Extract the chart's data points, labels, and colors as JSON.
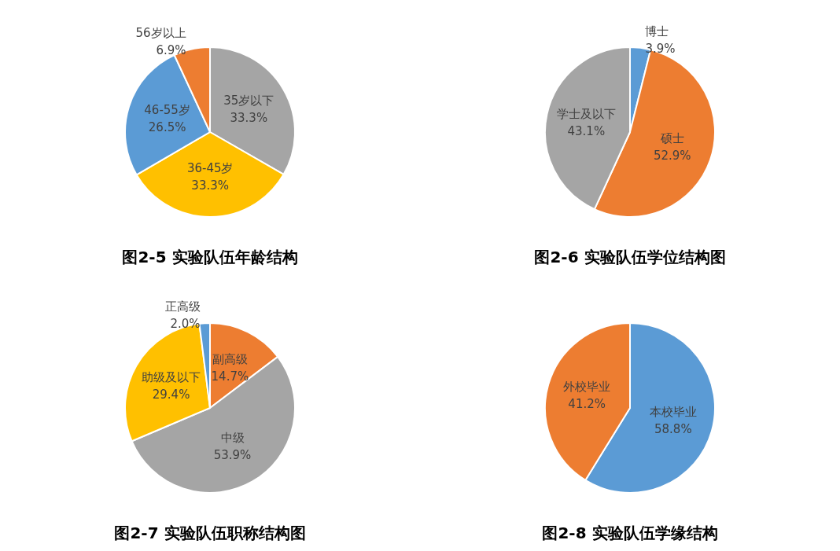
{
  "chart_data": [
    {
      "type": "pie",
      "title": "图2-5 实验队伍年龄结构",
      "categories": [
        "35岁以下",
        "36-45岁",
        "46-55岁",
        "56岁以上"
      ],
      "values": [
        33.3,
        33.3,
        26.5,
        6.9
      ],
      "value_labels": [
        "33.3%",
        "33.3%",
        "26.5%",
        "6.9%"
      ],
      "colors": [
        "#a5a5a5",
        "#ffc000",
        "#5b9bd5",
        "#ed7d31"
      ]
    },
    {
      "type": "pie",
      "title": "图2-6 实验队伍学位结构图",
      "categories": [
        "博士",
        "硕士",
        "学士及以下"
      ],
      "values": [
        3.9,
        52.9,
        43.1
      ],
      "value_labels": [
        "3.9%",
        "52.9%",
        "43.1%"
      ],
      "colors": [
        "#5b9bd5",
        "#ed7d31",
        "#a5a5a5"
      ]
    },
    {
      "type": "pie",
      "title": "图2-7 实验队伍职称结构图",
      "categories": [
        "副高级",
        "中级",
        "助级及以下",
        "正高级"
      ],
      "values": [
        14.7,
        53.9,
        29.4,
        2.0
      ],
      "value_labels": [
        "14.7%",
        "53.9%",
        "29.4%",
        "2.0%"
      ],
      "colors": [
        "#ed7d31",
        "#a5a5a5",
        "#ffc000",
        "#5b9bd5"
      ]
    },
    {
      "type": "pie",
      "title": "图2-8 实验队伍学缘结构",
      "categories": [
        "本校毕业",
        "外校毕业"
      ],
      "values": [
        58.8,
        41.2
      ],
      "value_labels": [
        "58.8%",
        "41.2%"
      ],
      "colors": [
        "#5b9bd5",
        "#ed7d31"
      ]
    }
  ]
}
